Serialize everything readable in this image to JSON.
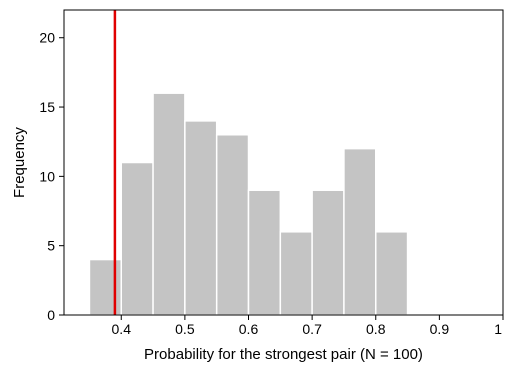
{
  "chart_data": {
    "type": "bar",
    "title": "",
    "xlabel": "Probability for the strongest pair (N = 100)",
    "ylabel": "Frequency",
    "bins": [
      {
        "start": 0.35,
        "end": 0.4,
        "count": 4
      },
      {
        "start": 0.4,
        "end": 0.45,
        "count": 11
      },
      {
        "start": 0.45,
        "end": 0.5,
        "count": 16
      },
      {
        "start": 0.5,
        "end": 0.55,
        "count": 14
      },
      {
        "start": 0.55,
        "end": 0.6,
        "count": 13
      },
      {
        "start": 0.6,
        "end": 0.65,
        "count": 9
      },
      {
        "start": 0.65,
        "end": 0.7,
        "count": 6
      },
      {
        "start": 0.7,
        "end": 0.75,
        "count": 9
      },
      {
        "start": 0.75,
        "end": 0.8,
        "count": 12
      },
      {
        "start": 0.8,
        "end": 0.85,
        "count": 6
      }
    ],
    "xlim": [
      0.31,
      1.0
    ],
    "ylim": [
      0,
      22
    ],
    "xticks": [
      0.4,
      0.5,
      0.6,
      0.7,
      0.8,
      0.9,
      1.0
    ],
    "xtick_labels": [
      "0.4",
      "0.5",
      "0.6",
      "0.7",
      "0.8",
      "0.9",
      "1"
    ],
    "yticks": [
      0,
      5,
      10,
      15,
      20
    ],
    "ytick_labels": [
      "0",
      "5",
      "10",
      "15",
      "20"
    ],
    "reference_line": {
      "x": 0.39,
      "color": "#e00000"
    },
    "bar_color": "#c4c4c4",
    "grid": false,
    "legend": "none"
  }
}
